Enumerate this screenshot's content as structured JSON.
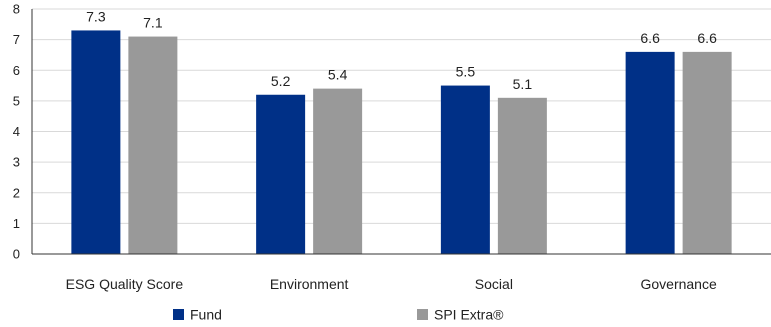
{
  "chart_data": {
    "type": "bar",
    "categories": [
      "ESG Quality Score",
      "Environment",
      "Social",
      "Governance"
    ],
    "series": [
      {
        "name": "Fund",
        "values": [
          7.3,
          5.2,
          5.5,
          6.6
        ],
        "labels": [
          "7.3",
          "5.2",
          "5.5",
          "6.6"
        ],
        "color": "#003087"
      },
      {
        "name": "SPI Extra®",
        "values": [
          7.1,
          5.4,
          5.1,
          6.6
        ],
        "labels": [
          "7.1",
          "5.4",
          "5.1",
          "6.6"
        ],
        "color": "#999999"
      }
    ],
    "title": "",
    "xlabel": "",
    "ylabel": "",
    "ylim": [
      0,
      8
    ],
    "yticks": [
      "0",
      "1",
      "2",
      "3",
      "4",
      "5",
      "6",
      "7",
      "8"
    ],
    "grid": true,
    "legend_position": "bottom"
  }
}
